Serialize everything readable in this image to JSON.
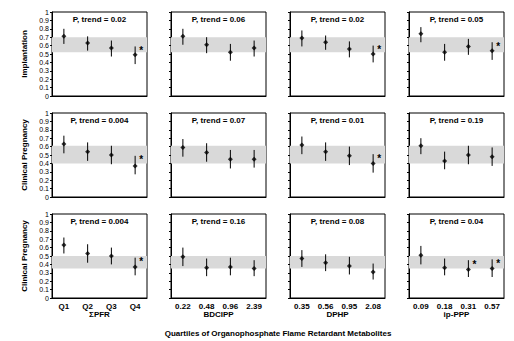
{
  "figure": {
    "xlabel": "Quartiles of Organophosphate Flame Retardant Metabolites"
  },
  "chart_data": [
    {
      "type": "scatter",
      "ylabel": "Implantation",
      "annotation": "P, trend = 0.02",
      "categories": [
        null,
        null,
        null,
        null
      ],
      "values": [
        0.71,
        0.63,
        0.57,
        0.49
      ],
      "lower": [
        0.62,
        0.54,
        0.47,
        0.38
      ],
      "upper": [
        0.8,
        0.71,
        0.66,
        0.59
      ],
      "point_notes": [
        null,
        null,
        null,
        "*"
      ],
      "band": [
        0.52,
        0.7
      ],
      "ylim": [
        0,
        1
      ],
      "yticks": [
        0,
        0.1,
        0.2,
        0.3,
        0.4,
        0.5,
        0.6,
        0.7,
        0.8,
        0.9,
        1
      ],
      "grid": false,
      "tick_labels": "y",
      "marker": "diamond",
      "color": "#000000"
    },
    {
      "type": "scatter",
      "annotation": "P, trend = 0.06",
      "categories": [
        null,
        null,
        null,
        null
      ],
      "values": [
        0.71,
        0.61,
        0.52,
        0.57
      ],
      "lower": [
        0.61,
        0.51,
        0.42,
        0.47
      ],
      "upper": [
        0.8,
        0.7,
        0.62,
        0.66
      ],
      "point_notes": [
        null,
        null,
        null,
        null
      ],
      "band": [
        0.52,
        0.7
      ],
      "ylim": [
        0,
        1
      ],
      "yticks": [
        0,
        0.1,
        0.2,
        0.3,
        0.4,
        0.5,
        0.6,
        0.7,
        0.8,
        0.9,
        1
      ],
      "grid": false,
      "tick_labels": false,
      "marker": "diamond",
      "color": "#000000"
    },
    {
      "type": "scatter",
      "annotation": "P, trend = 0.02",
      "categories": [
        null,
        null,
        null,
        null
      ],
      "values": [
        0.69,
        0.64,
        0.56,
        0.5
      ],
      "lower": [
        0.59,
        0.55,
        0.46,
        0.4
      ],
      "upper": [
        0.78,
        0.72,
        0.65,
        0.6
      ],
      "point_notes": [
        null,
        null,
        null,
        "*"
      ],
      "band": [
        0.52,
        0.7
      ],
      "ylim": [
        0,
        1
      ],
      "yticks": [
        0,
        0.1,
        0.2,
        0.3,
        0.4,
        0.5,
        0.6,
        0.7,
        0.8,
        0.9,
        1
      ],
      "grid": false,
      "tick_labels": false,
      "marker": "diamond",
      "color": "#000000"
    },
    {
      "type": "scatter",
      "annotation": "P, trend = 0.05",
      "categories": [
        null,
        null,
        null,
        null
      ],
      "values": [
        0.74,
        0.52,
        0.59,
        0.54
      ],
      "lower": [
        0.64,
        0.42,
        0.49,
        0.43
      ],
      "upper": [
        0.82,
        0.62,
        0.68,
        0.64
      ],
      "point_notes": [
        null,
        null,
        null,
        "*"
      ],
      "band": [
        0.52,
        0.7
      ],
      "ylim": [
        0,
        1
      ],
      "yticks": [
        0,
        0.1,
        0.2,
        0.3,
        0.4,
        0.5,
        0.6,
        0.7,
        0.8,
        0.9,
        1
      ],
      "grid": false,
      "tick_labels": false,
      "marker": "diamond",
      "color": "#000000"
    },
    {
      "type": "scatter",
      "ylabel": "Clinical Pregnancy",
      "annotation": "P, trend = 0.004",
      "categories": [
        null,
        null,
        null,
        null
      ],
      "values": [
        0.63,
        0.54,
        0.5,
        0.37
      ],
      "lower": [
        0.52,
        0.43,
        0.39,
        0.27
      ],
      "upper": [
        0.73,
        0.65,
        0.61,
        0.49
      ],
      "point_notes": [
        null,
        null,
        null,
        "*"
      ],
      "band": [
        0.4,
        0.61
      ],
      "ylim": [
        0,
        1
      ],
      "yticks": [
        0,
        0.1,
        0.2,
        0.3,
        0.4,
        0.5,
        0.6,
        0.7,
        0.8,
        0.9,
        1
      ],
      "grid": false,
      "tick_labels": "y",
      "marker": "diamond",
      "color": "#000000"
    },
    {
      "type": "scatter",
      "annotation": "P, trend = 0.07",
      "categories": [
        null,
        null,
        null,
        null
      ],
      "values": [
        0.59,
        0.53,
        0.45,
        0.45
      ],
      "lower": [
        0.48,
        0.42,
        0.34,
        0.35
      ],
      "upper": [
        0.69,
        0.64,
        0.56,
        0.56
      ],
      "point_notes": [
        null,
        null,
        null,
        null
      ],
      "band": [
        0.4,
        0.61
      ],
      "ylim": [
        0,
        1
      ],
      "yticks": [
        0,
        0.1,
        0.2,
        0.3,
        0.4,
        0.5,
        0.6,
        0.7,
        0.8,
        0.9,
        1
      ],
      "grid": false,
      "tick_labels": false,
      "marker": "diamond",
      "color": "#000000"
    },
    {
      "type": "scatter",
      "annotation": "P, trend = 0.01",
      "categories": [
        null,
        null,
        null,
        null
      ],
      "values": [
        0.62,
        0.54,
        0.49,
        0.4
      ],
      "lower": [
        0.51,
        0.43,
        0.38,
        0.29
      ],
      "upper": [
        0.72,
        0.65,
        0.6,
        0.51
      ],
      "point_notes": [
        null,
        null,
        null,
        "*"
      ],
      "band": [
        0.4,
        0.61
      ],
      "ylim": [
        0,
        1
      ],
      "yticks": [
        0,
        0.1,
        0.2,
        0.3,
        0.4,
        0.5,
        0.6,
        0.7,
        0.8,
        0.9,
        1
      ],
      "grid": false,
      "tick_labels": false,
      "marker": "diamond",
      "color": "#000000"
    },
    {
      "type": "scatter",
      "annotation": "P, trend = 0.19",
      "categories": [
        null,
        null,
        null,
        null
      ],
      "values": [
        0.61,
        0.43,
        0.5,
        0.48
      ],
      "lower": [
        0.51,
        0.33,
        0.39,
        0.37
      ],
      "upper": [
        0.7,
        0.54,
        0.61,
        0.59
      ],
      "point_notes": [
        null,
        null,
        null,
        null
      ],
      "band": [
        0.4,
        0.61
      ],
      "ylim": [
        0,
        1
      ],
      "yticks": [
        0,
        0.1,
        0.2,
        0.3,
        0.4,
        0.5,
        0.6,
        0.7,
        0.8,
        0.9,
        1
      ],
      "grid": false,
      "tick_labels": false,
      "marker": "diamond",
      "color": "#000000"
    },
    {
      "type": "scatter",
      "ylabel": "Clinical Pregnancy",
      "annotation": "P, trend = 0.004",
      "categories": [
        "Q1",
        "Q2",
        "Q3",
        "Q4"
      ],
      "values": [
        0.63,
        0.53,
        0.5,
        0.37
      ],
      "lower": [
        0.53,
        0.42,
        0.4,
        0.27
      ],
      "upper": [
        0.72,
        0.64,
        0.6,
        0.48
      ],
      "point_notes": [
        null,
        null,
        null,
        "*"
      ],
      "band": [
        0.35,
        0.5
      ],
      "ylim": [
        0,
        1
      ],
      "yticks": [
        0,
        0.1,
        0.2,
        0.3,
        0.4,
        0.5,
        0.6,
        0.7,
        0.8,
        0.9,
        1
      ],
      "grid": false,
      "tick_labels": true,
      "marker": "diamond",
      "color": "#000000",
      "xlabel": "ΣPFR"
    },
    {
      "type": "scatter",
      "annotation": "P, trend = 0.16",
      "categories": [
        "0.22",
        "0.48",
        "0.96",
        "2.39"
      ],
      "values": [
        0.49,
        0.36,
        0.37,
        0.35
      ],
      "lower": [
        0.38,
        0.26,
        0.27,
        0.26
      ],
      "upper": [
        0.6,
        0.47,
        0.48,
        0.45
      ],
      "point_notes": [
        null,
        null,
        null,
        null
      ],
      "band": [
        0.35,
        0.5
      ],
      "ylim": [
        0,
        1
      ],
      "yticks": [
        0,
        0.1,
        0.2,
        0.3,
        0.4,
        0.5,
        0.6,
        0.7,
        0.8,
        0.9,
        1
      ],
      "grid": false,
      "tick_labels": "x",
      "marker": "diamond",
      "color": "#000000",
      "xlabel": "BDCIPP"
    },
    {
      "type": "scatter",
      "annotation": "P, trend = 0.08",
      "categories": [
        "0.35",
        "0.56",
        "0.95",
        "2.08"
      ],
      "values": [
        0.47,
        0.42,
        0.38,
        0.31
      ],
      "lower": [
        0.37,
        0.32,
        0.28,
        0.22
      ],
      "upper": [
        0.57,
        0.52,
        0.49,
        0.41
      ],
      "point_notes": [
        null,
        null,
        null,
        null
      ],
      "band": [
        0.35,
        0.5
      ],
      "ylim": [
        0,
        1
      ],
      "yticks": [
        0,
        0.1,
        0.2,
        0.3,
        0.4,
        0.5,
        0.6,
        0.7,
        0.8,
        0.9,
        1
      ],
      "grid": false,
      "tick_labels": "x",
      "marker": "diamond",
      "color": "#000000",
      "xlabel": "DPHP"
    },
    {
      "type": "scatter",
      "annotation": "P, trend = 0.04",
      "categories": [
        "0.09",
        "0.18",
        "0.31",
        "0.57"
      ],
      "values": [
        0.51,
        0.36,
        0.34,
        0.35
      ],
      "lower": [
        0.4,
        0.27,
        0.25,
        0.25
      ],
      "upper": [
        0.62,
        0.47,
        0.45,
        0.46
      ],
      "point_notes": [
        null,
        null,
        "*",
        "*"
      ],
      "band": [
        0.35,
        0.5
      ],
      "ylim": [
        0,
        1
      ],
      "yticks": [
        0,
        0.1,
        0.2,
        0.3,
        0.4,
        0.5,
        0.6,
        0.7,
        0.8,
        0.9,
        1
      ],
      "grid": false,
      "tick_labels": "x",
      "marker": "diamond",
      "color": "#000000",
      "xlabel": "ip-PPP"
    }
  ]
}
